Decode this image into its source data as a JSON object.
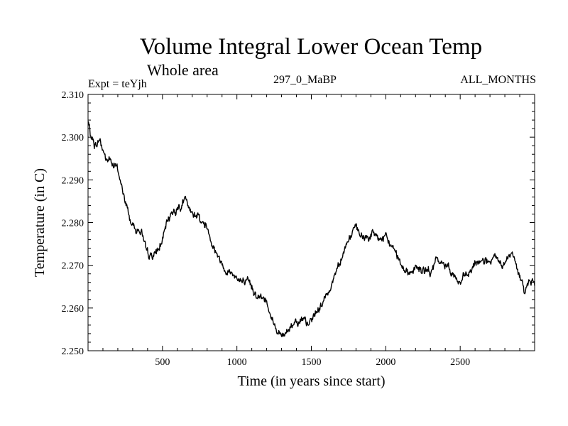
{
  "header": {
    "title": "Volume Integral Lower Ocean Temp",
    "subtitle": "Whole area",
    "expt": "Expt = teYjh",
    "period": "297_0_MaBP",
    "months": "ALL_MONTHS"
  },
  "chart_data": {
    "type": "line",
    "title": "Volume Integral Lower Ocean Temp",
    "subtitle": "Whole area",
    "xlabel": "Time (in years since start)",
    "ylabel": "Temperature (in C)",
    "xlim": [
      0,
      3000
    ],
    "ylim": [
      2.25,
      2.31
    ],
    "x_ticks": [
      500,
      1000,
      1500,
      2000,
      2500
    ],
    "x_tick_labels": [
      "500",
      "1000",
      "1500",
      "2000",
      "2500"
    ],
    "y_ticks": [
      2.25,
      2.26,
      2.27,
      2.28,
      2.29,
      2.3,
      2.31
    ],
    "y_tick_labels": [
      "2.250",
      "2.260",
      "2.270",
      "2.280",
      "2.290",
      "2.300",
      "2.310"
    ],
    "grid": false,
    "legend": "none",
    "series": [
      {
        "name": "Temperature",
        "color": "#000000",
        "x": [
          0,
          20,
          50,
          80,
          100,
          120,
          150,
          180,
          200,
          220,
          250,
          280,
          300,
          330,
          360,
          380,
          400,
          420,
          450,
          480,
          500,
          530,
          560,
          600,
          630,
          650,
          680,
          700,
          730,
          760,
          800,
          830,
          870,
          900,
          950,
          1000,
          1050,
          1100,
          1150,
          1200,
          1230,
          1250,
          1280,
          1300,
          1330,
          1350,
          1380,
          1400,
          1430,
          1450,
          1480,
          1500,
          1530,
          1560,
          1600,
          1650,
          1700,
          1750,
          1780,
          1800,
          1830,
          1850,
          1880,
          1900,
          1950,
          2000,
          2050,
          2080,
          2100,
          2130,
          2150,
          2180,
          2200,
          2250,
          2300,
          2330,
          2350,
          2380,
          2400,
          2430,
          2450,
          2480,
          2500,
          2530,
          2560,
          2600,
          2630,
          2650,
          2680,
          2700,
          2730,
          2750,
          2780,
          2800,
          2830,
          2850,
          2870,
          2880,
          2900,
          2930,
          2950,
          2980,
          3000
        ],
        "y": [
          2.3035,
          2.3,
          2.298,
          2.2995,
          2.297,
          2.2948,
          2.2945,
          2.293,
          2.2925,
          2.289,
          2.285,
          2.281,
          2.2795,
          2.2785,
          2.278,
          2.274,
          2.272,
          2.2722,
          2.2725,
          2.274,
          2.276,
          2.2795,
          2.2825,
          2.2835,
          2.2845,
          2.2855,
          2.2825,
          2.2815,
          2.2825,
          2.2805,
          2.279,
          2.276,
          2.2725,
          2.2705,
          2.2685,
          2.2675,
          2.2655,
          2.2648,
          2.2628,
          2.2615,
          2.2588,
          2.2565,
          2.2542,
          2.2532,
          2.2542,
          2.2555,
          2.2568,
          2.2575,
          2.2572,
          2.2565,
          2.2555,
          2.2572,
          2.2588,
          2.2605,
          2.2625,
          2.2672,
          2.2722,
          2.2762,
          2.278,
          2.2782,
          2.2768,
          2.2762,
          2.2768,
          2.2772,
          2.2765,
          2.2758,
          2.2742,
          2.2722,
          2.2708,
          2.2695,
          2.2682,
          2.2688,
          2.2698,
          2.2685,
          2.2682,
          2.2702,
          2.2712,
          2.2698,
          2.2702,
          2.2695,
          2.2685,
          2.2665,
          2.2658,
          2.2668,
          2.2678,
          2.2698,
          2.2712,
          2.2718,
          2.2708,
          2.2702,
          2.2712,
          2.2708,
          2.2698,
          2.2702,
          2.2718,
          2.2725,
          2.2705,
          2.2685,
          2.267,
          2.2648,
          2.2658,
          2.2662,
          2.2652
        ]
      }
    ]
  }
}
